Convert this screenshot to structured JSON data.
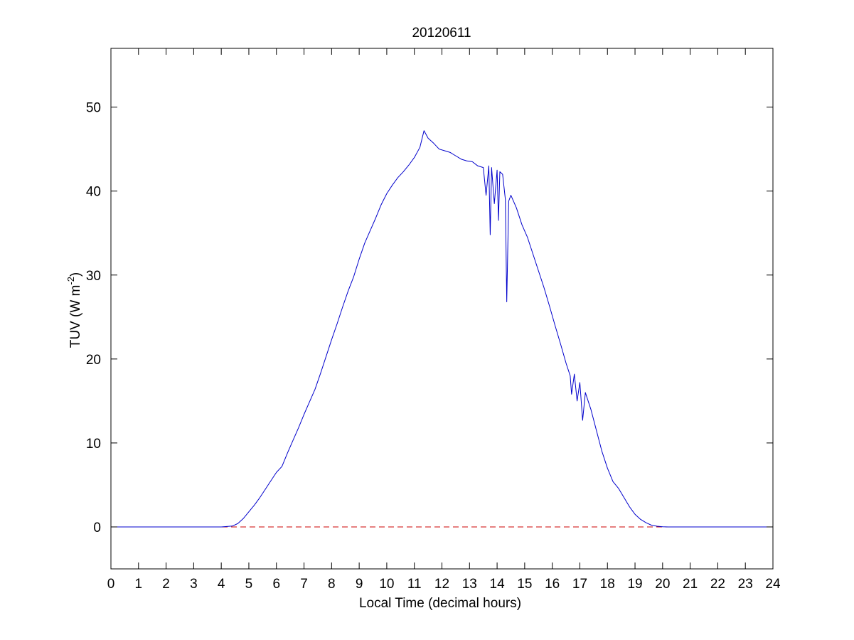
{
  "chart_data": {
    "type": "line",
    "title": "20120611",
    "xlabel": "Local Time (decimal hours)",
    "ylabel": {
      "base": "TUV (W m",
      "superscript": "-2",
      "close": ")"
    },
    "xlim": [
      0,
      24
    ],
    "ylim": [
      -5,
      57
    ],
    "xticks": [
      0,
      1,
      2,
      3,
      4,
      5,
      6,
      7,
      8,
      9,
      10,
      11,
      12,
      13,
      14,
      15,
      16,
      17,
      18,
      19,
      20,
      21,
      22,
      23,
      24
    ],
    "yticks": [
      0,
      10,
      20,
      30,
      40,
      50
    ],
    "grid": false,
    "legend": "none",
    "series": [
      {
        "color": "#0000cc",
        "style": "solid",
        "points": [
          [
            0,
            0
          ],
          [
            4.0,
            0
          ],
          [
            4.2,
            0.05
          ],
          [
            4.4,
            0.1
          ],
          [
            4.6,
            0.4
          ],
          [
            4.8,
            1.0
          ],
          [
            5.0,
            1.8
          ],
          [
            5.2,
            2.6
          ],
          [
            5.4,
            3.5
          ],
          [
            5.6,
            4.5
          ],
          [
            5.8,
            5.5
          ],
          [
            6.0,
            6.5
          ],
          [
            6.2,
            7.2
          ],
          [
            6.4,
            8.8
          ],
          [
            6.6,
            10.3
          ],
          [
            6.8,
            11.8
          ],
          [
            7.0,
            13.4
          ],
          [
            7.2,
            14.9
          ],
          [
            7.4,
            16.4
          ],
          [
            7.6,
            18.3
          ],
          [
            7.8,
            20.3
          ],
          [
            8.0,
            22.3
          ],
          [
            8.2,
            24.2
          ],
          [
            8.4,
            26.2
          ],
          [
            8.6,
            28.1
          ],
          [
            8.8,
            29.8
          ],
          [
            9.0,
            31.9
          ],
          [
            9.2,
            33.8
          ],
          [
            9.4,
            35.3
          ],
          [
            9.6,
            36.8
          ],
          [
            9.8,
            38.4
          ],
          [
            10.0,
            39.7
          ],
          [
            10.2,
            40.7
          ],
          [
            10.4,
            41.6
          ],
          [
            10.6,
            42.3
          ],
          [
            10.8,
            43.1
          ],
          [
            11.0,
            44.0
          ],
          [
            11.2,
            45.2
          ],
          [
            11.35,
            47.2
          ],
          [
            11.5,
            46.3
          ],
          [
            11.7,
            45.7
          ],
          [
            11.9,
            45.0
          ],
          [
            12.1,
            44.8
          ],
          [
            12.3,
            44.6
          ],
          [
            12.5,
            44.2
          ],
          [
            12.7,
            43.8
          ],
          [
            12.9,
            43.6
          ],
          [
            13.1,
            43.5
          ],
          [
            13.3,
            43.0
          ],
          [
            13.5,
            42.8
          ],
          [
            13.6,
            39.5
          ],
          [
            13.7,
            43.0
          ],
          [
            13.75,
            34.8
          ],
          [
            13.8,
            42.8
          ],
          [
            13.9,
            38.5
          ],
          [
            14.0,
            42.5
          ],
          [
            14.05,
            36.5
          ],
          [
            14.1,
            42.3
          ],
          [
            14.2,
            42.0
          ],
          [
            14.3,
            39.0
          ],
          [
            14.35,
            26.8
          ],
          [
            14.42,
            38.8
          ],
          [
            14.5,
            39.5
          ],
          [
            14.7,
            38.0
          ],
          [
            14.9,
            36.0
          ],
          [
            15.1,
            34.5
          ],
          [
            15.3,
            32.5
          ],
          [
            15.5,
            30.5
          ],
          [
            15.7,
            28.5
          ],
          [
            15.9,
            26.3
          ],
          [
            16.1,
            24.0
          ],
          [
            16.3,
            21.8
          ],
          [
            16.5,
            19.5
          ],
          [
            16.65,
            18.0
          ],
          [
            16.7,
            15.8
          ],
          [
            16.8,
            18.2
          ],
          [
            16.9,
            15.0
          ],
          [
            17.0,
            17.2
          ],
          [
            17.1,
            12.7
          ],
          [
            17.2,
            16.0
          ],
          [
            17.4,
            14.0
          ],
          [
            17.6,
            11.5
          ],
          [
            17.8,
            9.0
          ],
          [
            18.0,
            7.0
          ],
          [
            18.2,
            5.4
          ],
          [
            18.4,
            4.6
          ],
          [
            18.6,
            3.5
          ],
          [
            18.8,
            2.4
          ],
          [
            19.0,
            1.5
          ],
          [
            19.2,
            0.9
          ],
          [
            19.4,
            0.5
          ],
          [
            19.6,
            0.2
          ],
          [
            19.8,
            0.08
          ],
          [
            20.0,
            0.02
          ],
          [
            20.2,
            0
          ],
          [
            24,
            0
          ]
        ]
      },
      {
        "color": "#cc0000",
        "style": "dashed",
        "points": [
          [
            0,
            0
          ],
          [
            24,
            0
          ]
        ]
      }
    ]
  }
}
